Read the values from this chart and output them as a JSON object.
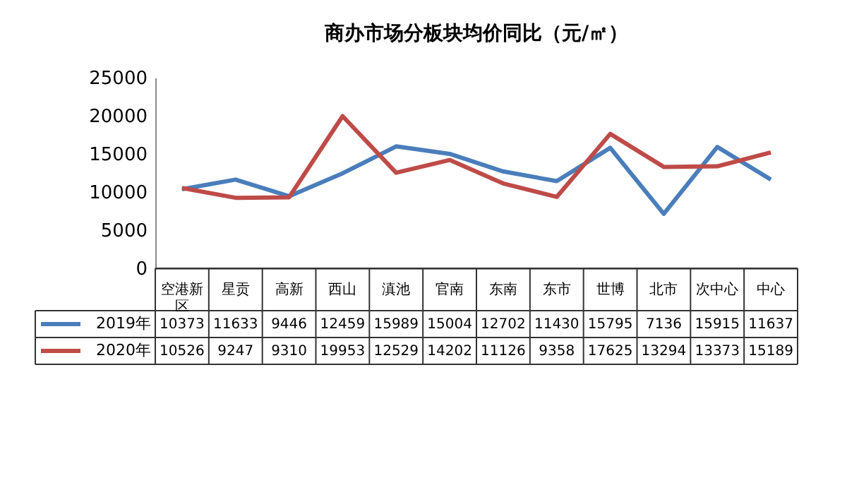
{
  "chart_data": {
    "type": "line",
    "title": "商办市场分板块均价同比（元/㎡）",
    "categories": [
      "空港新区",
      "星贡",
      "高新",
      "西山",
      "滇池",
      "官南",
      "东南",
      "东市",
      "世博",
      "北市",
      "次中心",
      "中心"
    ],
    "series": [
      {
        "name": "2019年",
        "color": "#4a7ebb",
        "values": [
          10373,
          11633,
          9446,
          12459,
          15989,
          15004,
          12702,
          11430,
          15795,
          7136,
          15915,
          11637
        ]
      },
      {
        "name": "2020年",
        "color": "#be4b48",
        "values": [
          10526,
          9247,
          9310,
          19953,
          12529,
          14202,
          11126,
          9358,
          17625,
          13294,
          13373,
          15189
        ]
      }
    ],
    "ylim": [
      0,
      25000
    ],
    "yticks": [
      0,
      5000,
      10000,
      15000,
      20000,
      25000
    ],
    "grid": false,
    "legend": "bottom",
    "data_labels": true,
    "line_style": "solid",
    "marker": "none"
  }
}
